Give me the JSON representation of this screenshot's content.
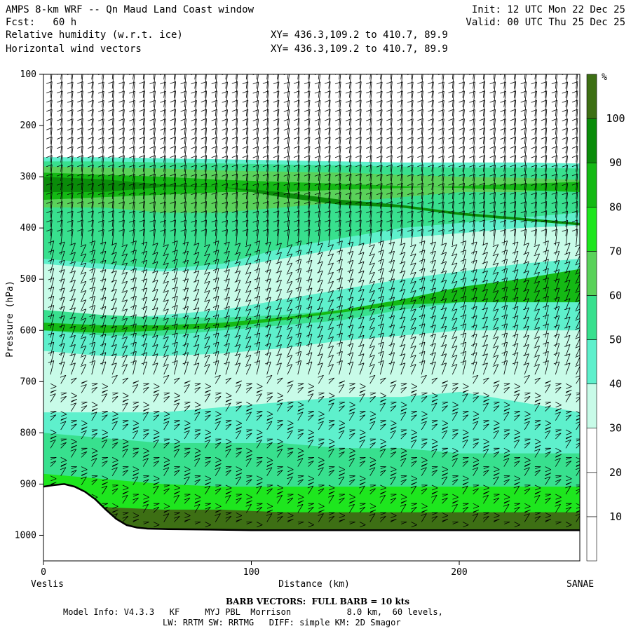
{
  "header": {
    "title": "AMPS 8-km WRF -- Qn Maud Land Coast window",
    "init": "Init: 12 UTC Mon 22 Dec 25",
    "fcst": "Fcst:   60 h",
    "valid": "Valid: 00 UTC Thu 25 Dec 25",
    "field1": "Relative humidity (w.r.t. ice)",
    "field2": "Horizontal wind vectors",
    "xy1": "XY= 436.3,109.2 to 410.7, 89.9",
    "xy2": "XY= 436.3,109.2 to 410.7, 89.9"
  },
  "footer": {
    "barb": "BARB VECTORS:  FULL BARB = 10 kts",
    "model1": "Model Info: V4.3.3   KF     MYJ PBL  Morrison           8.0 km,  60 levels,",
    "model2": "LW: RRTM SW: RRTMG   DIFF: simple KM: 2D Smagor"
  },
  "colors": {
    "rh_10_20": "#ffffff",
    "rh_30_40": "#c8fbe8",
    "rh_40_50": "#5ef0cc",
    "rh_50_60": "#38e08e",
    "rh_60_70": "#5ad25a",
    "rh_70_80": "#1ee61e",
    "rh_80_90": "#14b914",
    "rh_90_100": "#0a8c0a",
    "rh_100": "#3d6f14",
    "terrain_line": "#000000"
  },
  "chart_data": {
    "type": "cross-section contour",
    "xlabel": "Distance (km)",
    "ylabel": "Pressure (hPa)",
    "xlim": [
      0,
      258
    ],
    "ylim": [
      1050,
      100
    ],
    "x_ticks": [
      0,
      100,
      200
    ],
    "y_ticks": [
      100,
      200,
      300,
      400,
      500,
      600,
      700,
      800,
      900,
      1000
    ],
    "x_left_label": "Veslis",
    "x_right_label": "SANAE",
    "colorbar": {
      "unit": "%",
      "levels": [
        10,
        20,
        30,
        40,
        50,
        60,
        70,
        80,
        90,
        100
      ],
      "colors": [
        "#ffffff",
        "#ffffff",
        "#ffffff",
        "#c8fbe8",
        "#5ef0cc",
        "#38e08e",
        "#5ad25a",
        "#1ee61e",
        "#14b914",
        "#0a8c0a",
        "#3d6f14"
      ]
    },
    "humidity_bands": [
      {
        "rh": 40,
        "top": [
          262,
          262,
          264,
          266,
          268,
          270,
          272,
          272,
          272,
          274
        ],
        "bottom": [
          1000,
          1000,
          1000,
          1000,
          1000,
          1000,
          1000,
          1000,
          1000,
          1000
        ]
      },
      {
        "rh": 50,
        "top": [
          270,
          270,
          272,
          274,
          276,
          278,
          280,
          282,
          282,
          284
        ],
        "bottom": [
          460,
          470,
          480,
          470,
          440,
          420,
          400,
          390,
          380,
          370
        ]
      },
      {
        "rh": 60,
        "top": [
          280,
          282,
          284,
          288,
          290,
          292,
          296,
          300,
          302,
          306
        ],
        "bottom": [
          360,
          360,
          370,
          370,
          360,
          350,
          340,
          330,
          330,
          320
        ]
      },
      {
        "rh": 80,
        "top": [
          292,
          296,
          300,
          306,
          310,
          314,
          318,
          322,
          326,
          330
        ],
        "bottom": [
          345,
          340,
          335,
          330,
          330,
          325,
          322,
          318,
          314,
          310
        ]
      },
      {
        "rh": 90,
        "top": [
          300,
          305,
          315,
          320,
          330,
          345,
          355,
          370,
          380,
          390
        ],
        "bottom": [
          330,
          330,
          320,
          320,
          340,
          355,
          360,
          375,
          385,
          395
        ]
      },
      {
        "rh": 30,
        "top": [
          470,
          480,
          485,
          480,
          460,
          440,
          420,
          410,
          400,
          395
        ],
        "bottom": [
          580,
          580,
          570,
          560,
          540,
          520,
          500,
          485,
          470,
          460
        ]
      },
      {
        "rh": 50,
        "top": [
          560,
          570,
          575,
          575,
          570,
          560,
          545,
          520,
          505,
          490
        ],
        "bottom": [
          600,
          610,
          610,
          600,
          590,
          580,
          560,
          545,
          540,
          535
        ]
      },
      {
        "rh": 80,
        "top": [
          585,
          590,
          590,
          585,
          575,
          560,
          540,
          515,
          500,
          480
        ],
        "bottom": [
          600,
          605,
          600,
          595,
          580,
          565,
          550,
          545,
          545,
          545
        ]
      },
      {
        "rh": 30,
        "top": [
          640,
          650,
          650,
          645,
          635,
          620,
          610,
          600,
          600,
          600
        ],
        "bottom": [
          760,
          760,
          760,
          750,
          740,
          730,
          730,
          720,
          740,
          760
        ]
      },
      {
        "rh": 50,
        "top": [
          800,
          810,
          820,
          820,
          820,
          830,
          830,
          840,
          840,
          840
        ],
        "bottom": [
          940,
          950,
          950,
          955,
          955,
          960,
          960,
          960,
          960,
          960
        ]
      },
      {
        "rh": 70,
        "top": [
          880,
          890,
          900,
          905,
          905,
          905,
          905,
          905,
          905,
          905
        ],
        "bottom": [
          960,
          965,
          970,
          970,
          970,
          970,
          970,
          970,
          970,
          970
        ]
      },
      {
        "rh": 100,
        "top": [
          935,
          945,
          950,
          950,
          955,
          955,
          955,
          955,
          955,
          955
        ],
        "bottom": [
          990,
          990,
          990,
          990,
          990,
          990,
          990,
          990,
          990,
          990
        ]
      }
    ],
    "terrain": {
      "x": [
        0,
        5,
        10,
        15,
        20,
        25,
        30,
        35,
        40,
        45,
        50,
        60,
        80,
        100,
        150,
        200,
        258
      ],
      "p": [
        905,
        902,
        900,
        905,
        915,
        930,
        950,
        968,
        980,
        985,
        987,
        988,
        989,
        990,
        990,
        990,
        990
      ]
    }
  }
}
